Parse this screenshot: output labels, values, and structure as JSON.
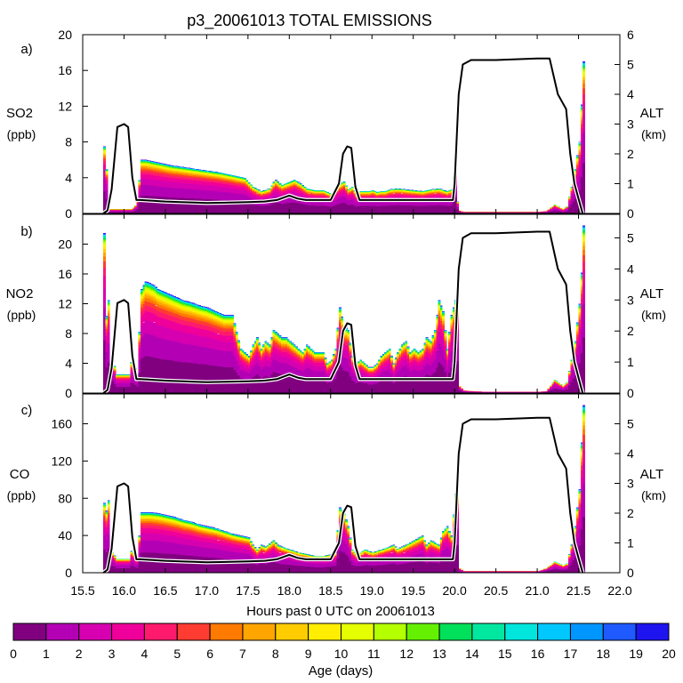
{
  "title": "p3_20061013 TOTAL EMISSIONS",
  "colors": {
    "age_palette": [
      "#800080",
      "#b400b4",
      "#d600b0",
      "#f0009a",
      "#ff1a6e",
      "#ff3c32",
      "#ff7a00",
      "#ffa500",
      "#ffcc00",
      "#ffee00",
      "#e6ff00",
      "#b4ff00",
      "#64f000",
      "#00e05a",
      "#00e8a0",
      "#00e6dc",
      "#00c8ff",
      "#0096ff",
      "#1e5aff",
      "#1e14f0",
      "#6a0aff"
    ],
    "altitude_line": "#000000"
  },
  "chart_data": [
    {
      "type": "area",
      "panel": "a)",
      "ylabel": "SO2",
      "yunit": "(ppb)",
      "y2label": "ALT",
      "y2unit": "(km)",
      "xlim": [
        15.5,
        22.0
      ],
      "ylim": [
        0,
        20
      ],
      "yticks": [
        0,
        4,
        8,
        12,
        16,
        20
      ],
      "y2lim": [
        0,
        6
      ],
      "y2ticks": [
        0,
        1,
        2,
        3,
        4,
        5,
        6
      ],
      "series": [
        {
          "name": "total",
          "x": [
            15.75,
            15.78,
            15.8,
            15.82,
            15.85,
            15.88,
            15.92,
            15.96,
            16.0,
            16.04,
            16.08,
            16.12,
            16.15,
            16.2,
            16.25,
            16.3,
            16.35,
            16.45,
            16.55,
            16.7,
            16.85,
            17.0,
            17.15,
            17.3,
            17.45,
            17.55,
            17.65,
            17.75,
            17.82,
            17.9,
            18.0,
            18.05,
            18.12,
            18.2,
            18.3,
            18.4,
            18.5,
            18.55,
            18.6,
            18.65,
            18.7,
            18.75,
            18.8,
            18.85,
            18.9,
            18.95,
            19.0,
            19.05,
            19.1,
            19.15,
            19.2,
            19.3,
            19.4,
            19.5,
            19.6,
            19.7,
            19.8,
            19.9,
            19.95,
            20.0,
            20.03,
            20.06,
            20.1,
            20.2,
            20.4,
            20.6,
            20.8,
            21.0,
            21.1,
            21.2,
            21.3,
            21.35,
            21.4,
            21.45,
            21.5,
            21.53,
            21.55
          ],
          "values": [
            7.5,
            4.5,
            1.0,
            0.5,
            0.5,
            0.5,
            0.5,
            0.5,
            0.5,
            0.5,
            0.5,
            0.8,
            1.5,
            6.0,
            6.0,
            5.9,
            5.8,
            5.6,
            5.4,
            5.2,
            5.0,
            4.8,
            4.6,
            4.3,
            4.0,
            3.0,
            2.5,
            2.8,
            3.8,
            3.2,
            3.6,
            3.8,
            3.4,
            2.8,
            2.6,
            2.6,
            2.2,
            2.8,
            3.3,
            3.6,
            2.7,
            3.0,
            2.2,
            2.5,
            2.5,
            2.5,
            2.6,
            2.4,
            2.5,
            2.5,
            2.7,
            2.8,
            2.7,
            2.6,
            2.5,
            2.7,
            2.8,
            2.5,
            2.7,
            5.5,
            0.5,
            0.3,
            0.2,
            0.2,
            0.2,
            0.2,
            0.2,
            0.2,
            0.3,
            1.0,
            0.5,
            0.8,
            3.0,
            5.0,
            8.0,
            13.0,
            17.0
          ]
        },
        {
          "name": "ALT",
          "x": [
            15.75,
            15.8,
            15.85,
            15.92,
            16.0,
            16.05,
            16.1,
            16.15,
            16.2,
            16.5,
            17.0,
            17.5,
            17.7,
            17.85,
            17.95,
            18.0,
            18.1,
            18.2,
            18.5,
            18.6,
            18.65,
            18.7,
            18.75,
            18.8,
            18.85,
            18.9,
            19.0,
            19.5,
            19.98,
            20.0,
            20.05,
            20.1,
            20.2,
            20.5,
            21.0,
            21.15,
            21.25,
            21.35,
            21.4,
            21.45,
            21.5,
            21.55
          ],
          "values": [
            0.0,
            0.1,
            0.8,
            2.9,
            3.0,
            2.9,
            1.2,
            0.45,
            0.45,
            0.4,
            0.35,
            0.38,
            0.4,
            0.45,
            0.55,
            0.6,
            0.5,
            0.45,
            0.45,
            1.0,
            2.0,
            2.25,
            2.2,
            0.9,
            0.45,
            0.45,
            0.45,
            0.45,
            0.45,
            1.0,
            4.0,
            5.0,
            5.15,
            5.15,
            5.2,
            5.2,
            4.0,
            3.5,
            2.0,
            1.0,
            0.5,
            0.0
          ]
        }
      ]
    },
    {
      "type": "area",
      "panel": "b)",
      "ylabel": "NO2",
      "yunit": "(ppb)",
      "y2label": "ALT",
      "y2unit": "(km)",
      "xlim": [
        15.5,
        22.0
      ],
      "ylim": [
        0,
        24
      ],
      "yticks": [
        0,
        4,
        8,
        12,
        16,
        20
      ],
      "y2lim": [
        0,
        5.76
      ],
      "y2ticks": [
        0,
        1,
        2,
        3,
        4,
        5
      ],
      "series": [
        {
          "name": "total",
          "x": [
            15.75,
            15.77,
            15.8,
            15.82,
            15.85,
            15.9,
            15.95,
            16.0,
            16.05,
            16.08,
            16.12,
            16.15,
            16.2,
            16.25,
            16.3,
            16.35,
            16.4,
            16.5,
            16.6,
            16.7,
            16.8,
            16.9,
            17.0,
            17.1,
            17.2,
            17.3,
            17.4,
            17.5,
            17.55,
            17.6,
            17.65,
            17.7,
            17.75,
            17.8,
            17.85,
            17.9,
            17.95,
            18.0,
            18.05,
            18.1,
            18.15,
            18.2,
            18.25,
            18.3,
            18.35,
            18.4,
            18.45,
            18.5,
            18.55,
            18.6,
            18.65,
            18.7,
            18.75,
            18.8,
            18.85,
            18.9,
            18.95,
            19.0,
            19.05,
            19.1,
            19.15,
            19.2,
            19.25,
            19.3,
            19.35,
            19.4,
            19.45,
            19.5,
            19.55,
            19.6,
            19.65,
            19.7,
            19.75,
            19.8,
            19.85,
            19.9,
            19.95,
            20.0,
            20.03,
            20.05,
            20.1,
            20.2,
            20.4,
            20.6,
            20.8,
            21.0,
            21.1,
            21.2,
            21.3,
            21.35,
            21.4,
            21.45,
            21.5,
            21.53,
            21.55
          ],
          "values": [
            21.5,
            10.0,
            12.5,
            3.5,
            4.8,
            2.5,
            2.5,
            2.5,
            2.5,
            4.5,
            3.5,
            2.5,
            14.0,
            15.0,
            14.8,
            14.5,
            14.0,
            13.5,
            13.0,
            12.5,
            12.2,
            11.8,
            11.5,
            11.0,
            10.5,
            10.5,
            6.0,
            5.0,
            6.5,
            7.5,
            6.0,
            7.0,
            6.5,
            8.5,
            8.0,
            7.5,
            7.5,
            7.0,
            6.5,
            6.0,
            5.5,
            6.5,
            6.0,
            5.5,
            5.5,
            5.5,
            4.0,
            4.5,
            6.0,
            11.5,
            9.0,
            8.5,
            5.0,
            4.0,
            4.5,
            4.0,
            3.5,
            3.5,
            4.0,
            5.0,
            5.5,
            6.0,
            4.0,
            5.5,
            6.5,
            7.0,
            5.5,
            6.0,
            5.5,
            6.0,
            7.5,
            7.0,
            8.5,
            12.5,
            11.0,
            6.0,
            10.5,
            12.5,
            13.0,
            1.0,
            0.4,
            0.3,
            0.2,
            0.2,
            0.2,
            0.2,
            0.3,
            1.8,
            1.0,
            1.5,
            4.5,
            7.0,
            12.0,
            17.0,
            22.5
          ]
        },
        {
          "name": "ALT",
          "x": [
            15.75,
            15.8,
            15.85,
            15.92,
            16.0,
            16.05,
            16.1,
            16.15,
            16.2,
            16.5,
            17.0,
            17.5,
            17.7,
            17.85,
            17.95,
            18.0,
            18.1,
            18.2,
            18.5,
            18.6,
            18.65,
            18.7,
            18.75,
            18.8,
            18.85,
            18.9,
            19.0,
            19.5,
            19.98,
            20.0,
            20.05,
            20.1,
            20.2,
            20.5,
            21.0,
            21.15,
            21.25,
            21.35,
            21.4,
            21.45,
            21.5,
            21.55
          ],
          "values": [
            0.0,
            0.1,
            0.8,
            2.9,
            3.0,
            2.9,
            1.2,
            0.45,
            0.45,
            0.4,
            0.35,
            0.38,
            0.4,
            0.45,
            0.55,
            0.6,
            0.5,
            0.45,
            0.45,
            1.0,
            2.0,
            2.25,
            2.2,
            0.9,
            0.45,
            0.45,
            0.45,
            0.45,
            0.45,
            1.0,
            4.0,
            5.0,
            5.15,
            5.15,
            5.2,
            5.2,
            4.0,
            3.5,
            2.0,
            1.0,
            0.5,
            0.0
          ]
        }
      ]
    },
    {
      "type": "area",
      "panel": "c)",
      "ylabel": "CO",
      "yunit": "(ppb)",
      "y2label": "ALT",
      "y2unit": "(km)",
      "xlabel": "Hours past 0 UTC on 20061013",
      "xlim": [
        15.5,
        22.0
      ],
      "xticks": [
        "15.5",
        "16.0",
        "16.5",
        "17.0",
        "17.5",
        "18.0",
        "18.5",
        "19.0",
        "19.5",
        "20.0",
        "20.5",
        "21.0",
        "21.5",
        "22.0"
      ],
      "ylim": [
        0,
        192
      ],
      "yticks": [
        0,
        40,
        80,
        120,
        160
      ],
      "y2lim": [
        0,
        6
      ],
      "y2ticks": [
        0,
        1,
        2,
        3,
        4,
        5
      ],
      "series": [
        {
          "name": "total",
          "x": [
            15.75,
            15.78,
            15.8,
            15.82,
            15.85,
            15.9,
            15.95,
            16.0,
            16.05,
            16.08,
            16.12,
            16.15,
            16.2,
            16.3,
            16.4,
            16.5,
            16.6,
            16.7,
            16.8,
            16.9,
            17.0,
            17.1,
            17.2,
            17.3,
            17.4,
            17.5,
            17.55,
            17.6,
            17.65,
            17.7,
            17.8,
            17.85,
            17.9,
            18.0,
            18.1,
            18.2,
            18.3,
            18.4,
            18.5,
            18.55,
            18.6,
            18.65,
            18.7,
            18.75,
            18.8,
            18.85,
            18.9,
            19.0,
            19.1,
            19.2,
            19.25,
            19.3,
            19.4,
            19.5,
            19.6,
            19.65,
            19.7,
            19.8,
            19.85,
            19.9,
            19.95,
            20.0,
            20.03,
            20.05,
            20.1,
            20.2,
            20.4,
            20.6,
            20.8,
            21.0,
            21.1,
            21.2,
            21.3,
            21.35,
            21.4,
            21.45,
            21.5,
            21.53,
            21.55
          ],
          "values": [
            75,
            65,
            78,
            20,
            22,
            15,
            15,
            15,
            15,
            25,
            18,
            15,
            65,
            65,
            64,
            62,
            60,
            57,
            55,
            52,
            50,
            48,
            45,
            42,
            40,
            38,
            30,
            25,
            30,
            28,
            35,
            30,
            28,
            25,
            22,
            20,
            18,
            18,
            20,
            22,
            70,
            65,
            50,
            25,
            20,
            22,
            25,
            22,
            25,
            28,
            30,
            26,
            30,
            35,
            40,
            30,
            35,
            30,
            45,
            50,
            40,
            85,
            90,
            5,
            2,
            2,
            2,
            2,
            2,
            2,
            5,
            12,
            8,
            10,
            30,
            50,
            90,
            150,
            180
          ]
        },
        {
          "name": "ALT",
          "x": [
            15.75,
            15.8,
            15.85,
            15.92,
            16.0,
            16.05,
            16.1,
            16.15,
            16.2,
            16.5,
            17.0,
            17.5,
            17.7,
            17.85,
            17.95,
            18.0,
            18.1,
            18.2,
            18.5,
            18.6,
            18.65,
            18.7,
            18.75,
            18.8,
            18.85,
            18.9,
            19.0,
            19.5,
            19.98,
            20.0,
            20.05,
            20.1,
            20.2,
            20.5,
            21.0,
            21.15,
            21.25,
            21.35,
            21.4,
            21.45,
            21.5,
            21.55
          ],
          "values": [
            0.0,
            0.1,
            0.8,
            2.9,
            3.0,
            2.9,
            1.2,
            0.45,
            0.45,
            0.4,
            0.35,
            0.38,
            0.4,
            0.45,
            0.55,
            0.6,
            0.5,
            0.45,
            0.45,
            1.0,
            2.0,
            2.25,
            2.2,
            0.9,
            0.45,
            0.45,
            0.45,
            0.45,
            0.45,
            1.0,
            4.0,
            5.0,
            5.15,
            5.15,
            5.2,
            5.2,
            4.0,
            3.5,
            2.0,
            1.0,
            0.5,
            0.0
          ]
        }
      ]
    }
  ],
  "colorbar": {
    "labels": [
      "0",
      "1",
      "2",
      "3",
      "4",
      "5",
      "6",
      "7",
      "8",
      "9",
      "10",
      "11",
      "12",
      "13",
      "14",
      "15",
      "16",
      "17",
      "18",
      "19",
      "20"
    ],
    "title": "Age (days)"
  }
}
